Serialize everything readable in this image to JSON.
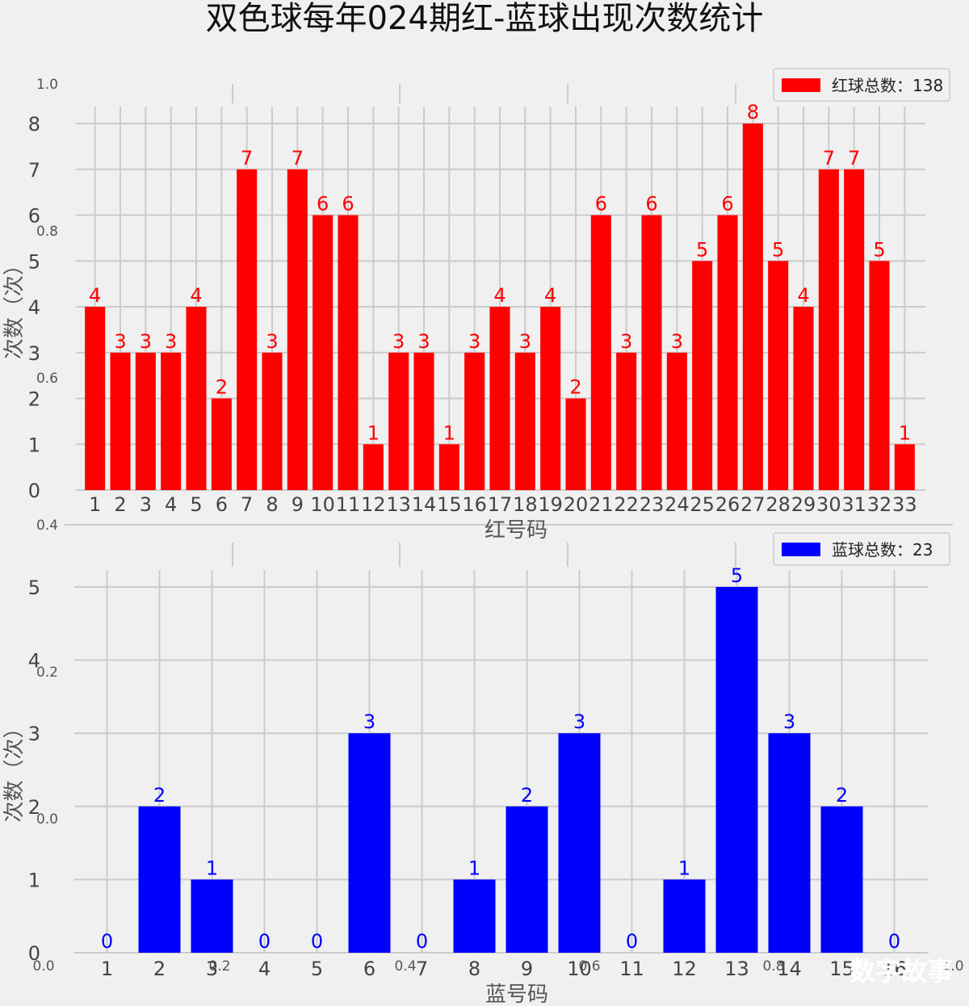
{
  "title": "双色球每年024期红-蓝球出现次数统计",
  "watermark": "数字故事",
  "ghost_ticks": {
    "y_left": [
      "1.0",
      "0.8",
      "0.6",
      "0.4",
      "0.2",
      "0.0"
    ],
    "x_bottom": [
      "0.0",
      "0.2",
      "0.4",
      "0.6",
      "0.8",
      "1.0"
    ]
  },
  "chart_data": [
    {
      "type": "bar",
      "color": "#ff0000",
      "categories": [
        "1",
        "2",
        "3",
        "4",
        "5",
        "6",
        "7",
        "8",
        "9",
        "10",
        "11",
        "12",
        "13",
        "14",
        "15",
        "16",
        "17",
        "18",
        "19",
        "20",
        "21",
        "22",
        "23",
        "24",
        "25",
        "26",
        "27",
        "28",
        "29",
        "30",
        "31",
        "32",
        "33"
      ],
      "values": [
        4,
        3,
        3,
        3,
        4,
        2,
        7,
        3,
        7,
        6,
        6,
        1,
        3,
        3,
        1,
        3,
        4,
        3,
        4,
        2,
        6,
        3,
        6,
        3,
        5,
        6,
        8,
        5,
        4,
        7,
        7,
        5,
        1
      ],
      "yticks": [
        0,
        1,
        2,
        3,
        4,
        5,
        6,
        7,
        8
      ],
      "xlabel": "红号码",
      "ylabel": "次数（次）",
      "legend": "红球总数：138",
      "legend_position": "top-right",
      "grid": true
    },
    {
      "type": "bar",
      "color": "#0000ff",
      "categories": [
        "1",
        "2",
        "3",
        "4",
        "5",
        "6",
        "7",
        "8",
        "9",
        "10",
        "11",
        "12",
        "13",
        "14",
        "15",
        "16"
      ],
      "values": [
        0,
        2,
        1,
        0,
        0,
        3,
        0,
        1,
        2,
        3,
        0,
        1,
        5,
        3,
        2,
        0
      ],
      "yticks": [
        0,
        1,
        2,
        3,
        4,
        5
      ],
      "xlabel": "蓝号码",
      "ylabel": "次数（次）",
      "legend": "蓝球总数：23",
      "legend_position": "top-right",
      "grid": true
    }
  ]
}
